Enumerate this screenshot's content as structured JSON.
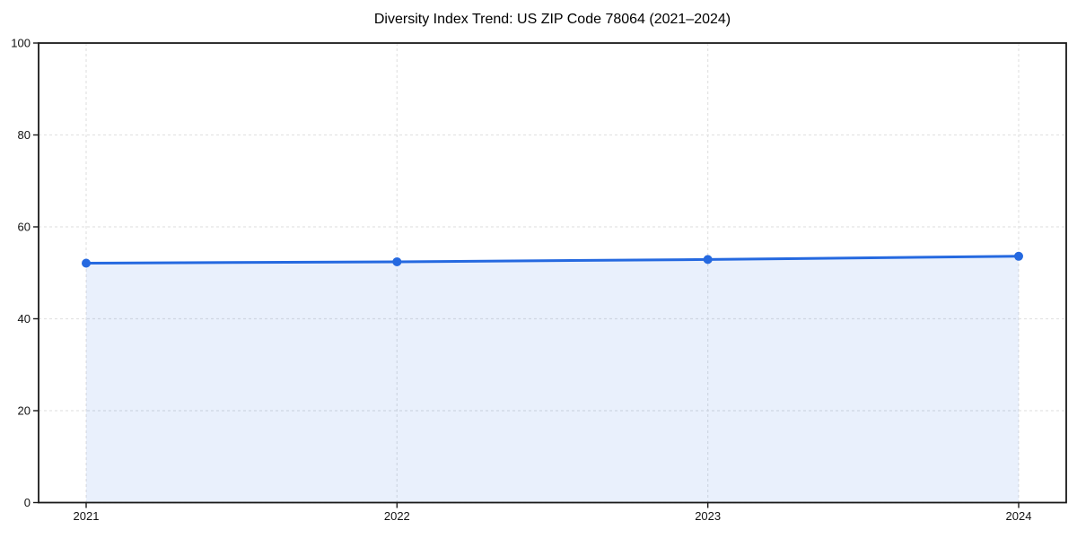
{
  "chart_data": {
    "type": "line",
    "title": "Diversity Index Trend: US ZIP Code 78064 (2021–2024)",
    "categories": [
      "2021",
      "2022",
      "2023",
      "2024"
    ],
    "series": [
      {
        "name": "Diversity Index",
        "values": [
          52.1,
          52.4,
          52.9,
          53.6
        ]
      }
    ],
    "xlabel": "",
    "ylabel": "",
    "ylim": [
      0,
      100
    ],
    "yticks": [
      0,
      20,
      40,
      60,
      80,
      100
    ],
    "grid": true,
    "grid_style": "dashed",
    "legend_position": "none",
    "area_fill": true,
    "marker": "circle",
    "colors": {
      "line": "#2569e0",
      "marker": "#2569e0",
      "area_fill_opacity": 0.1,
      "grid": "#e3e3e3",
      "spine": "#1a1a1a",
      "tick_text": "#111111",
      "title_text": "#000000",
      "background": "#ffffff"
    }
  }
}
